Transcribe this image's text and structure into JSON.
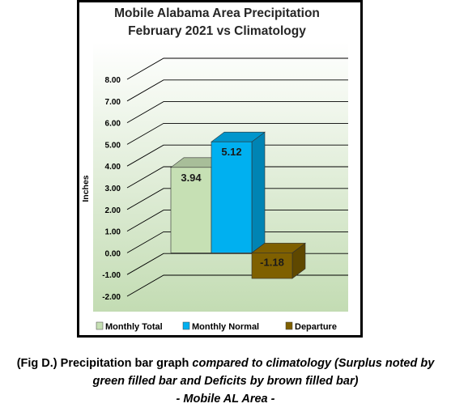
{
  "chart_data": {
    "type": "bar",
    "title": "Mobile Alabama Area Precipitation",
    "subtitle": "February 2021 vs Climatology",
    "ylabel": "Inches",
    "ylim": [
      -2.0,
      8.0
    ],
    "yticks": [
      "8.00",
      "7.00",
      "6.00",
      "5.00",
      "4.00",
      "3.00",
      "2.00",
      "1.00",
      "0.00",
      "-1.00",
      "-2.00"
    ],
    "categories": [
      "Monthly Total",
      "Monthly Normal",
      "Departure"
    ],
    "values": [
      3.94,
      5.12,
      -1.18
    ],
    "data_labels": [
      "3.94",
      "5.12",
      "-1.18"
    ],
    "colors": [
      "#c6e0b4",
      "#00b0f0",
      "#7f6000"
    ],
    "legend_position": "bottom",
    "grid": true,
    "three_d": true
  },
  "caption": {
    "line1_normal": "(Fig D.) Precipitation bar graph ",
    "line1_italic": "compared to climatology (Surplus noted by",
    "line2": "green filled bar and Deficits by brown filled bar)",
    "line3": "- Mobile AL Area -"
  }
}
